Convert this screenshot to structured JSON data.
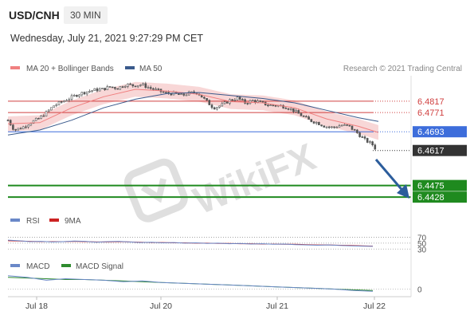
{
  "header": {
    "symbol": "USD/CNH",
    "timeframe": "30 MIN",
    "datetime": "Wednesday, July 21, 2021 9:27:29 PM CET"
  },
  "legend": {
    "ma20": "MA 20 + Bollinger Bands",
    "ma50": "MA 50",
    "rsi": "RSI",
    "rsi_ma": "9MA",
    "macd": "MACD",
    "macd_signal": "MACD Signal"
  },
  "credit": "Research © 2021 Trading Central",
  "watermark": "WikiFX",
  "colors": {
    "candle": "#555555",
    "bollinger": "#f6c9c9",
    "ma20": "#f08080",
    "ma50": "#3a5a8c",
    "resistance": "#d04040",
    "pivot": "#3d6ddb",
    "support": "#1f8a1f",
    "current": "#333333",
    "rsi": "#6a88c8",
    "rsi_ma": "#cc2222",
    "macd": "#6a88c8",
    "macd_signal": "#2e8b2e",
    "arrow": "#2c5d9c"
  },
  "chart_data": {
    "type": "candlestick",
    "x_ticks": [
      "Jul 18",
      "Jul 20",
      "Jul 21",
      "Jul 22"
    ],
    "y_range": [
      6.438,
      6.492
    ],
    "levels": [
      {
        "label": "6.4817",
        "value": 6.4817,
        "kind": "resistance"
      },
      {
        "label": "6.4771",
        "value": 6.4771,
        "kind": "resistance"
      },
      {
        "label": "6.4693",
        "value": 6.4693,
        "kind": "pivot"
      },
      {
        "label": "6.4617",
        "value": 6.4617,
        "kind": "current"
      },
      {
        "label": "6.4475",
        "value": 6.4475,
        "kind": "support"
      },
      {
        "label": "6.4428",
        "value": 6.4428,
        "kind": "support"
      }
    ],
    "price_path": [
      [
        0,
        6.474
      ],
      [
        8,
        6.47
      ],
      [
        18,
        6.471
      ],
      [
        28,
        6.473
      ],
      [
        38,
        6.4745
      ],
      [
        48,
        6.477
      ],
      [
        58,
        6.48
      ],
      [
        68,
        6.4815
      ],
      [
        78,
        6.483
      ],
      [
        88,
        6.4845
      ],
      [
        98,
        6.4855
      ],
      [
        108,
        6.4862
      ],
      [
        118,
        6.4865
      ],
      [
        128,
        6.4875
      ],
      [
        138,
        6.487
      ],
      [
        148,
        6.4885
      ],
      [
        158,
        6.488
      ],
      [
        168,
        6.4885
      ],
      [
        178,
        6.487
      ],
      [
        188,
        6.486
      ],
      [
        198,
        6.485
      ],
      [
        208,
        6.4848
      ],
      [
        218,
        6.484
      ],
      [
        228,
        6.485
      ],
      [
        238,
        6.4852
      ],
      [
        248,
        6.482
      ],
      [
        258,
        6.479
      ],
      [
        268,
        6.48
      ],
      [
        278,
        6.482
      ],
      [
        288,
        6.483
      ],
      [
        298,
        6.481
      ],
      [
        308,
        6.482
      ],
      [
        318,
        6.481
      ],
      [
        328,
        6.48
      ],
      [
        338,
        6.48
      ],
      [
        348,
        6.4795
      ],
      [
        358,
        6.478
      ],
      [
        368,
        6.476
      ],
      [
        378,
        6.474
      ],
      [
        388,
        6.473
      ],
      [
        398,
        6.4715
      ],
      [
        408,
        6.471
      ],
      [
        418,
        6.472
      ],
      [
        428,
        6.4715
      ],
      [
        438,
        6.469
      ],
      [
        448,
        6.466
      ],
      [
        458,
        6.464
      ],
      [
        463,
        6.4617
      ]
    ],
    "ma20_path": [
      [
        0,
        6.4725
      ],
      [
        40,
        6.473
      ],
      [
        80,
        6.479
      ],
      [
        120,
        6.4835
      ],
      [
        160,
        6.4865
      ],
      [
        200,
        6.4858
      ],
      [
        240,
        6.4845
      ],
      [
        280,
        6.4815
      ],
      [
        320,
        6.481
      ],
      [
        360,
        6.479
      ],
      [
        400,
        6.4745
      ],
      [
        440,
        6.4715
      ],
      [
        465,
        6.469
      ]
    ],
    "ma50_path": [
      [
        0,
        6.468
      ],
      [
        40,
        6.47
      ],
      [
        80,
        6.474
      ],
      [
        120,
        6.479
      ],
      [
        160,
        6.4825
      ],
      [
        200,
        6.4848
      ],
      [
        240,
        6.4852
      ],
      [
        280,
        6.484
      ],
      [
        320,
        6.4828
      ],
      [
        360,
        6.481
      ],
      [
        400,
        6.478
      ],
      [
        440,
        6.475
      ],
      [
        465,
        6.4735
      ]
    ],
    "band_width": 0.003,
    "rsi": {
      "levels": [
        "70",
        "50",
        "30"
      ],
      "values": [
        60,
        58,
        55,
        56,
        54,
        55,
        57,
        56,
        53,
        55,
        56,
        54,
        52,
        53,
        51,
        52,
        50,
        51,
        49,
        50,
        48,
        49,
        47,
        48,
        46,
        47,
        45,
        44,
        43,
        44,
        42,
        41,
        40,
        39
      ],
      "ma_values": [
        58,
        57,
        56,
        55,
        55,
        55,
        56,
        55,
        54,
        54,
        55,
        54,
        53,
        52,
        52,
        51,
        51,
        50,
        50,
        49,
        49,
        48,
        48,
        47,
        47,
        46,
        46,
        45,
        44,
        44,
        43,
        42,
        41,
        40
      ]
    },
    "macd": {
      "zero_label": "0",
      "macd_values": [
        0.0018,
        0.0016,
        0.0012,
        0.0014,
        0.0013,
        0.0012,
        0.001,
        0.0011,
        0.0009,
        0.0008,
        0.0007,
        0.0006,
        0.0005,
        0.0004,
        0.0003,
        0.0002,
        0.0001,
        0.0,
        -0.0002,
        -0.0003
      ],
      "signal_values": [
        0.0016,
        0.0015,
        0.0014,
        0.0013,
        0.0013,
        0.0012,
        0.0011,
        0.001,
        0.0009,
        0.0008,
        0.0007,
        0.0006,
        0.0005,
        0.0004,
        0.0003,
        0.0002,
        0.0001,
        0.0,
        -0.0001,
        -0.0002
      ]
    }
  }
}
